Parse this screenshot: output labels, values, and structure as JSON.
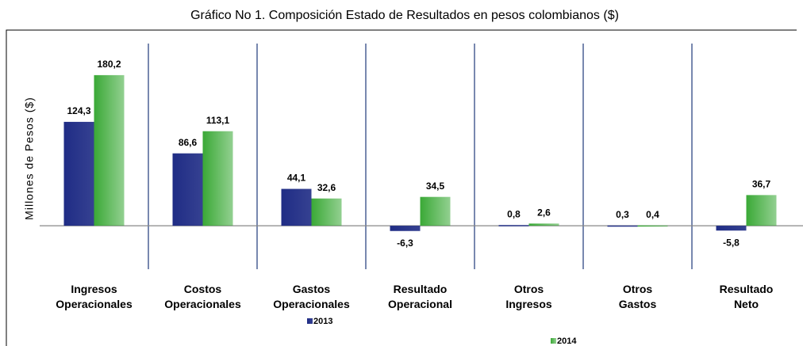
{
  "chart_data": {
    "type": "bar",
    "title": "Gráfico No 1. Composición Estado de Resultados en pesos colombianos ($)",
    "y_label": "Millones de Pesos ($)",
    "categories": [
      "Ingresos Operacionales",
      "Costos Operacionales",
      "Gastos Operacionales",
      "Resultado Operacional",
      "Otros Ingresos",
      "Otros Gastos",
      "Resultado Neto"
    ],
    "series": [
      {
        "name": "2013",
        "color": "#1f2c85",
        "values": [
          124.3,
          86.6,
          44.1,
          -6.3,
          0.8,
          0.3,
          -5.8
        ],
        "value_labels": [
          "124,3",
          "86,6",
          "44,1",
          "-6,3",
          "0,8",
          "0,3",
          "-5,8"
        ]
      },
      {
        "name": "2014",
        "color": "#3aa936",
        "values": [
          180.2,
          113.1,
          32.6,
          34.5,
          2.6,
          0.4,
          36.7
        ],
        "value_labels": [
          "180,2",
          "113,1",
          "32,6",
          "34,5",
          "2,6",
          "0,4",
          "36,7"
        ]
      }
    ],
    "ylim": [
      -52,
      218
    ]
  }
}
